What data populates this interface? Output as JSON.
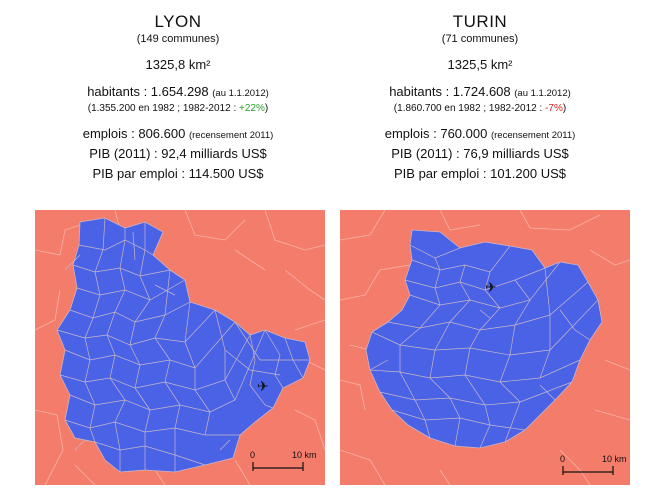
{
  "lyon": {
    "name": "LYON",
    "communes": "(149 communes)",
    "area": "1325,8 km²",
    "hab_label": "habitants : 1.654.298",
    "hab_date": "(au 1.1.2012)",
    "evo_prefix": "(1.355.200 en 1982 ; 1982-2012 : ",
    "evo_value": "+22%",
    "evo_suffix": ")",
    "emplois_label": "emplois : 806.600",
    "emplois_note": "(recensement 2011)",
    "pib": "PIB (2011) : 92,4 milliards US$",
    "pib_emploi": "PIB par emploi : 114.500 US$"
  },
  "turin": {
    "name": "TURIN",
    "communes": "(71 communes)",
    "area": "1325,5 km²",
    "hab_label": "habitants : 1.724.608",
    "hab_date": "(au 1.1.2012)",
    "evo_prefix": "(1.860.700 en 1982 ; 1982-2012 : ",
    "evo_value": "-7%",
    "evo_suffix": ")",
    "emplois_label": "emplois : 760.000",
    "emplois_note": "(recensement 2011)",
    "pib": "PIB (2011) : 76,9 milliards US$",
    "pib_emploi": "PIB par emploi : 101.200 US$"
  },
  "scale": {
    "zero": "0",
    "ten": "10 km"
  },
  "colors": {
    "region": "#4a63e6",
    "outside": "#f47c6b",
    "positive": "#2aa02a",
    "negative": "#e02020"
  },
  "icons": [
    "airport-icon"
  ]
}
